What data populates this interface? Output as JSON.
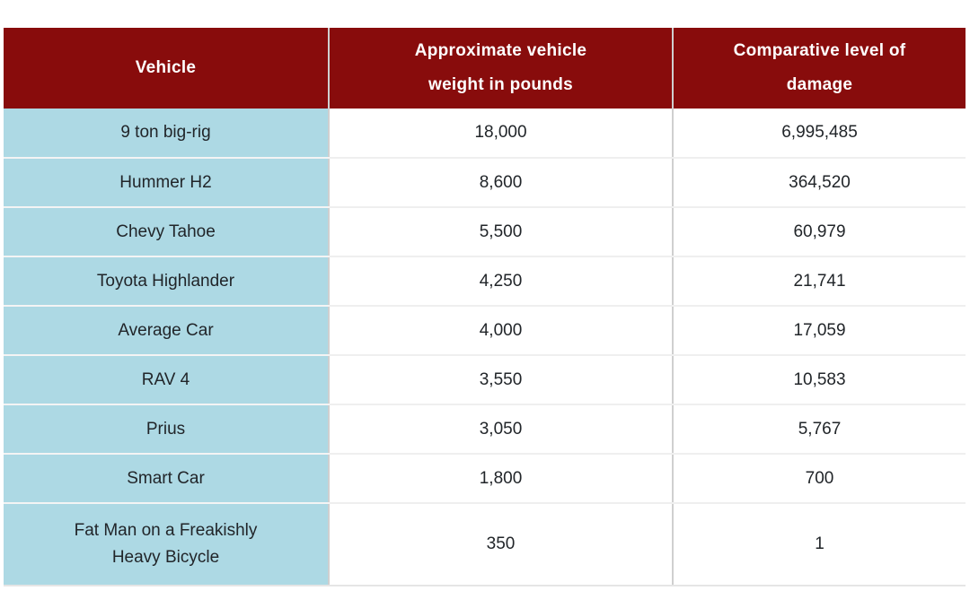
{
  "colors": {
    "header_bg": "#880c0c",
    "header_text": "#ffffff",
    "vehicle_column_bg": "#add9e4",
    "cell_bg": "#ffffff",
    "body_text": "#212529",
    "column_divider": "#cfcfcf",
    "row_divider": "#efefef"
  },
  "table": {
    "headers": [
      "Vehicle",
      "Approximate vehicle\nweight in pounds",
      "Comparative level of\ndamage"
    ],
    "rows": [
      [
        "9 ton big-rig",
        "18,000",
        "6,995,485"
      ],
      [
        "Hummer H2",
        "8,600",
        "364,520"
      ],
      [
        "Chevy Tahoe",
        "5,500",
        "60,979"
      ],
      [
        "Toyota Highlander",
        "4,250",
        "21,741"
      ],
      [
        "Average Car",
        "4,000",
        "17,059"
      ],
      [
        "RAV 4",
        "3,550",
        "10,583"
      ],
      [
        "Prius",
        "3,050",
        "5,767"
      ],
      [
        "Smart Car",
        "1,800",
        "700"
      ],
      [
        "Fat Man on a Freakishly\nHeavy Bicycle",
        "350",
        "1"
      ]
    ]
  },
  "chart_data": {
    "type": "table",
    "columns": [
      "Vehicle",
      "Approximate vehicle weight in pounds",
      "Comparative level of damage"
    ],
    "rows": [
      {
        "vehicle": "9 ton big-rig",
        "weight_lbs": 18000,
        "damage": 6995485
      },
      {
        "vehicle": "Hummer H2",
        "weight_lbs": 8600,
        "damage": 364520
      },
      {
        "vehicle": "Chevy Tahoe",
        "weight_lbs": 5500,
        "damage": 60979
      },
      {
        "vehicle": "Toyota Highlander",
        "weight_lbs": 4250,
        "damage": 21741
      },
      {
        "vehicle": "Average Car",
        "weight_lbs": 4000,
        "damage": 17059
      },
      {
        "vehicle": "RAV 4",
        "weight_lbs": 3550,
        "damage": 10583
      },
      {
        "vehicle": "Prius",
        "weight_lbs": 3050,
        "damage": 5767
      },
      {
        "vehicle": "Smart Car",
        "weight_lbs": 1800,
        "damage": 700
      },
      {
        "vehicle": "Fat Man on a Freakishly Heavy Bicycle",
        "weight_lbs": 350,
        "damage": 1
      }
    ]
  }
}
